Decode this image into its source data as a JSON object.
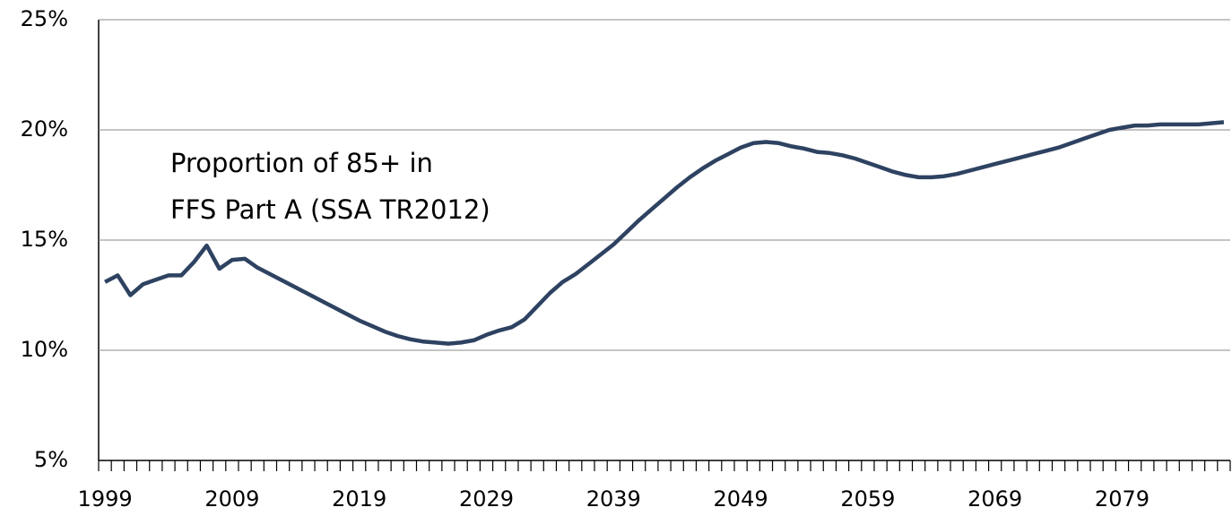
{
  "chart_data": {
    "type": "line",
    "annotation": [
      "Proportion of 85+ in",
      "FFS Part A (SSA TR2012)"
    ],
    "categories": [
      "1999",
      null,
      null,
      null,
      null,
      null,
      null,
      null,
      null,
      null,
      "2009",
      null,
      null,
      null,
      null,
      null,
      null,
      null,
      null,
      null,
      "2019",
      null,
      null,
      null,
      null,
      null,
      null,
      null,
      null,
      null,
      "2029",
      null,
      null,
      null,
      null,
      null,
      null,
      null,
      null,
      null,
      "2039",
      null,
      null,
      null,
      null,
      null,
      null,
      null,
      null,
      null,
      "2049",
      null,
      null,
      null,
      null,
      null,
      null,
      null,
      null,
      null,
      "2059",
      null,
      null,
      null,
      null,
      null,
      null,
      null,
      null,
      null,
      "2069",
      null,
      null,
      null,
      null,
      null,
      null,
      null,
      null,
      null,
      "2079",
      null,
      null,
      null,
      null,
      null,
      null,
      null,
      null
    ],
    "series": [
      {
        "color": "#2e4261",
        "values": [
          13.1,
          13.4,
          12.5,
          13.0,
          13.2,
          13.4,
          13.4,
          14.0,
          14.75,
          13.7,
          14.1,
          14.15,
          13.75,
          13.45,
          13.15,
          12.85,
          12.55,
          12.25,
          11.95,
          11.65,
          11.35,
          11.1,
          10.85,
          10.65,
          10.5,
          10.4,
          10.35,
          10.3,
          10.35,
          10.45,
          10.7,
          10.9,
          11.05,
          11.4,
          12.0,
          12.6,
          13.1,
          13.45,
          13.9,
          14.35,
          14.8,
          15.35,
          15.9,
          16.4,
          16.9,
          17.4,
          17.85,
          18.25,
          18.6,
          18.9,
          19.2,
          19.4,
          19.45,
          19.4,
          19.25,
          19.15,
          19.0,
          18.95,
          18.85,
          18.7,
          18.5,
          18.3,
          18.1,
          17.95,
          17.85,
          17.85,
          17.9,
          18.0,
          18.15,
          18.3,
          18.45,
          18.6,
          18.75,
          18.9,
          19.05,
          19.2,
          19.4,
          19.6,
          19.8,
          20.0,
          20.1,
          20.2,
          20.2,
          20.25,
          20.25,
          20.25,
          20.25,
          20.3,
          20.35
        ]
      }
    ],
    "ylim": [
      5,
      25
    ],
    "yticks": [
      {
        "value": 5,
        "label": "5%"
      },
      {
        "value": 10,
        "label": "10%"
      },
      {
        "value": 15,
        "label": "15%"
      },
      {
        "value": 20,
        "label": "20%"
      },
      {
        "value": 25,
        "label": "25%"
      }
    ],
    "grid": true
  }
}
